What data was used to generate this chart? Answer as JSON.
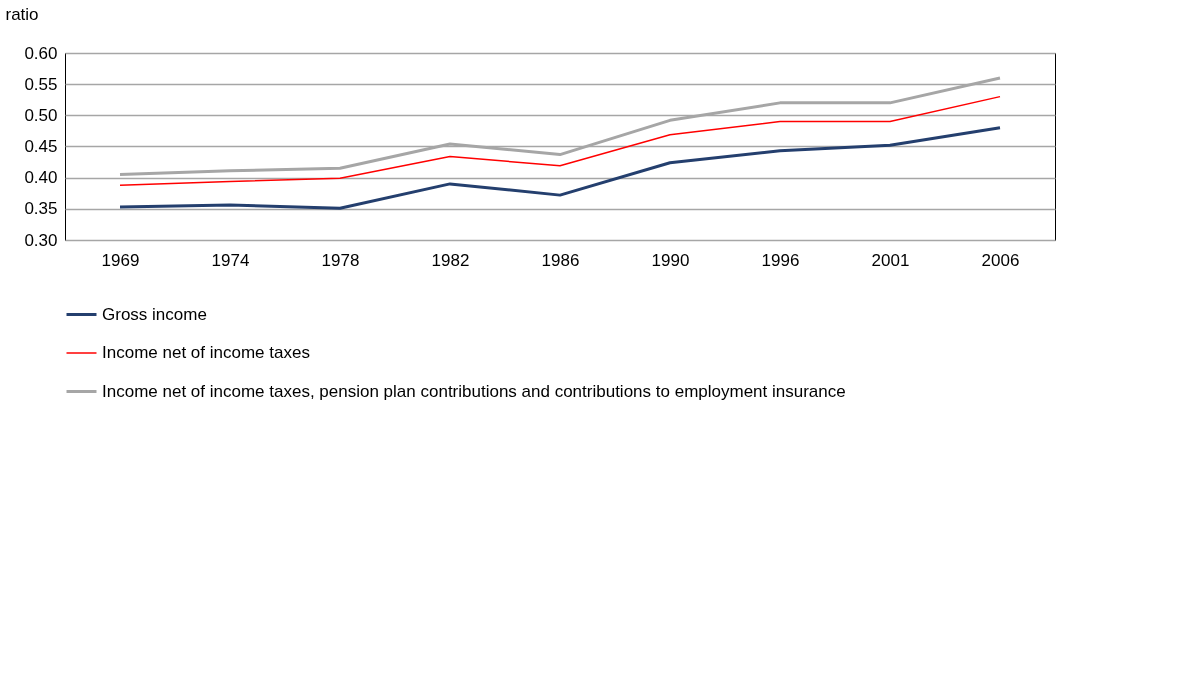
{
  "chart_data": {
    "type": "line",
    "ylabel": "ratio",
    "categories": [
      "1969",
      "1974",
      "1978",
      "1982",
      "1986",
      "1990",
      "1996",
      "2001",
      "2006"
    ],
    "series": [
      {
        "name": "Gross income",
        "color": "#243f6e",
        "values": [
          0.353,
          0.356,
          0.351,
          0.39,
          0.372,
          0.424,
          0.443,
          0.452,
          0.48
        ]
      },
      {
        "name": "Income net of income taxes",
        "color": "#ff0000",
        "values": [
          0.388,
          0.394,
          0.399,
          0.434,
          0.419,
          0.469,
          0.49,
          0.49,
          0.53
        ]
      },
      {
        "name": "Income net of income taxes, pension plan contributions and contributions to employment insurance",
        "color": "#a6a6a6",
        "values": [
          0.405,
          0.411,
          0.415,
          0.454,
          0.437,
          0.492,
          0.52,
          0.52,
          0.56
        ]
      }
    ],
    "ylim": [
      0.3,
      0.6
    ],
    "yticks": [
      {
        "value": 0.3,
        "label": "0.30"
      },
      0.35,
      {
        "value": 0.4,
        "label": "0.40"
      },
      0.45,
      {
        "value": 0.5,
        "label": "0.50"
      },
      0.55,
      {
        "value": 0.6,
        "label": "0.60"
      }
    ],
    "grid": "y",
    "legend": "bottom",
    "marker": "none",
    "line_style": "solid"
  }
}
